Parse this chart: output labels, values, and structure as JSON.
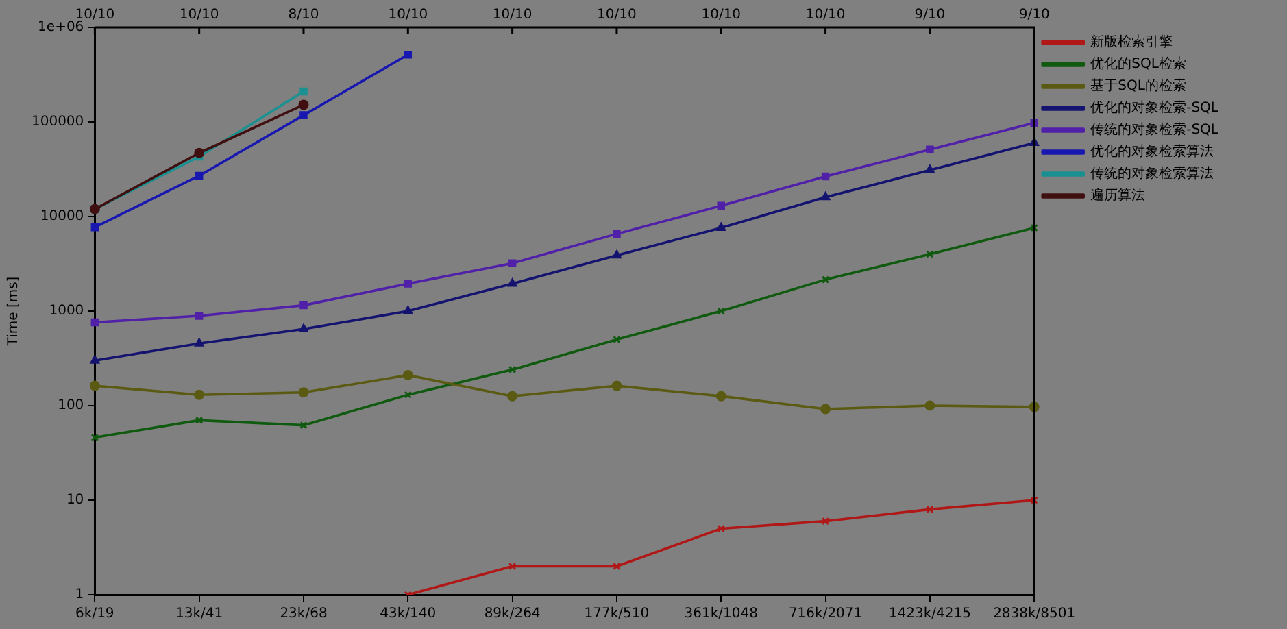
{
  "chart_data": {
    "type": "line",
    "ylabel": "Time [ms]",
    "log": "y",
    "grid": false,
    "legend": "right",
    "categories": [
      "6k/19",
      "13k/41",
      "23k/68",
      "43k/140",
      "89k/264",
      "177k/510",
      "361k/1048",
      "716k/2071",
      "1423k/4215",
      "2838k/8501"
    ],
    "annotations": [
      "10/10",
      "10/10",
      "8/10",
      "10/10",
      "10/10",
      "10/10",
      "10/10",
      "10/10",
      "9/10",
      "9/10"
    ],
    "ylim": [
      1,
      1000000
    ],
    "yticks": [
      1,
      10,
      100,
      1000,
      10000,
      100000,
      {
        "value": 1000000,
        "label": "1e+06"
      }
    ],
    "series": [
      {
        "name": "新版检索引擎",
        "color": "#b01818",
        "marker": "cross",
        "values": [
          null,
          null,
          null,
          1,
          2,
          2,
          5,
          6,
          8,
          10
        ]
      },
      {
        "name": "优化的SQL检索",
        "color": "#105a10",
        "marker": "cross",
        "values": [
          46,
          70,
          62,
          130,
          240,
          500,
          1000,
          2150,
          4000,
          7600
        ]
      },
      {
        "name": "基于SQL的检索",
        "color": "#5a5a12",
        "marker": "circle",
        "values": [
          162,
          130,
          138,
          210,
          126,
          162,
          126,
          92,
          100,
          97
        ]
      },
      {
        "name": "优化的对象检索-SQL",
        "color": "#141470",
        "marker": "triangle",
        "values": [
          300,
          455,
          645,
          1000,
          1950,
          3880,
          7600,
          16000,
          31000,
          60000
        ]
      },
      {
        "name": "传统的对象检索-SQL",
        "color": "#5020a8",
        "marker": "square",
        "values": [
          760,
          890,
          1150,
          1950,
          3200,
          6550,
          13000,
          26500,
          51000,
          98000
        ]
      },
      {
        "name": "优化的对象检索算法",
        "color": "#1818b0",
        "marker": "square",
        "values": [
          7700,
          27000,
          118000,
          515000,
          null,
          null,
          null,
          null,
          null,
          null
        ]
      },
      {
        "name": "传统的对象检索算法",
        "color": "#1a9090",
        "marker": "square",
        "values": [
          12000,
          43000,
          210000,
          null,
          null,
          null,
          null,
          null,
          null,
          null
        ]
      },
      {
        "name": "遍历算法",
        "color": "#401010",
        "marker": "circle",
        "values": [
          12000,
          47000,
          152000,
          null,
          null,
          null,
          null,
          null,
          null,
          null
        ]
      }
    ]
  }
}
